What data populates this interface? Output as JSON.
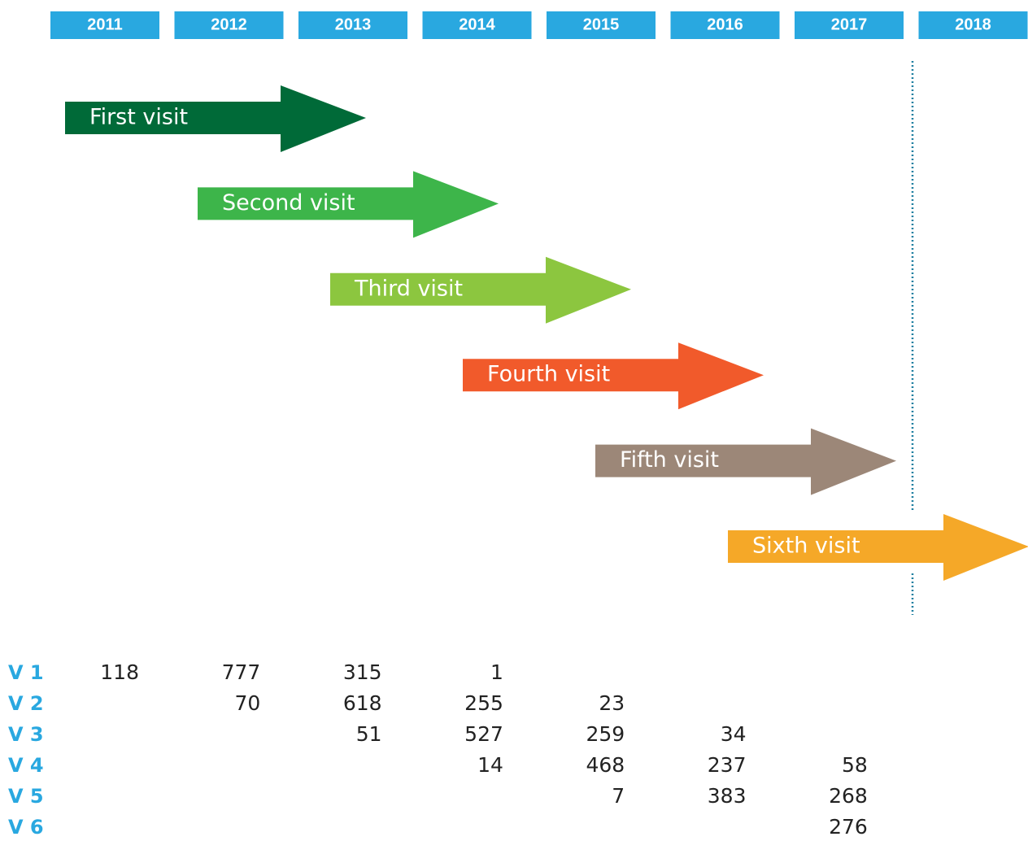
{
  "years": [
    "2011",
    "2012",
    "2013",
    "2014",
    "2015",
    "2016",
    "2017",
    "2018"
  ],
  "visits": [
    {
      "label": "First visit",
      "color": "#006a38"
    },
    {
      "label": "Second visit",
      "color": "#3db54a"
    },
    {
      "label": "Third visit",
      "color": "#8cc63f"
    },
    {
      "label": "Fourth visit",
      "color": "#f15a2b"
    },
    {
      "label": "Fifth visit",
      "color": "#9c8778"
    },
    {
      "label": "Sixth visit",
      "color": "#f5a828"
    }
  ],
  "table": {
    "rows": [
      {
        "label": "V 1",
        "values": [
          118,
          777,
          315,
          1,
          null,
          null,
          null,
          null
        ]
      },
      {
        "label": "V 2",
        "values": [
          null,
          70,
          618,
          255,
          23,
          null,
          null,
          null
        ]
      },
      {
        "label": "V 3",
        "values": [
          null,
          null,
          51,
          527,
          259,
          34,
          null,
          null
        ]
      },
      {
        "label": "V 4",
        "values": [
          null,
          null,
          null,
          14,
          468,
          237,
          58,
          null
        ]
      },
      {
        "label": "V 5",
        "values": [
          null,
          null,
          null,
          null,
          7,
          383,
          268,
          null
        ]
      },
      {
        "label": "V 6",
        "values": [
          null,
          null,
          null,
          null,
          null,
          null,
          276,
          null
        ]
      }
    ]
  }
}
